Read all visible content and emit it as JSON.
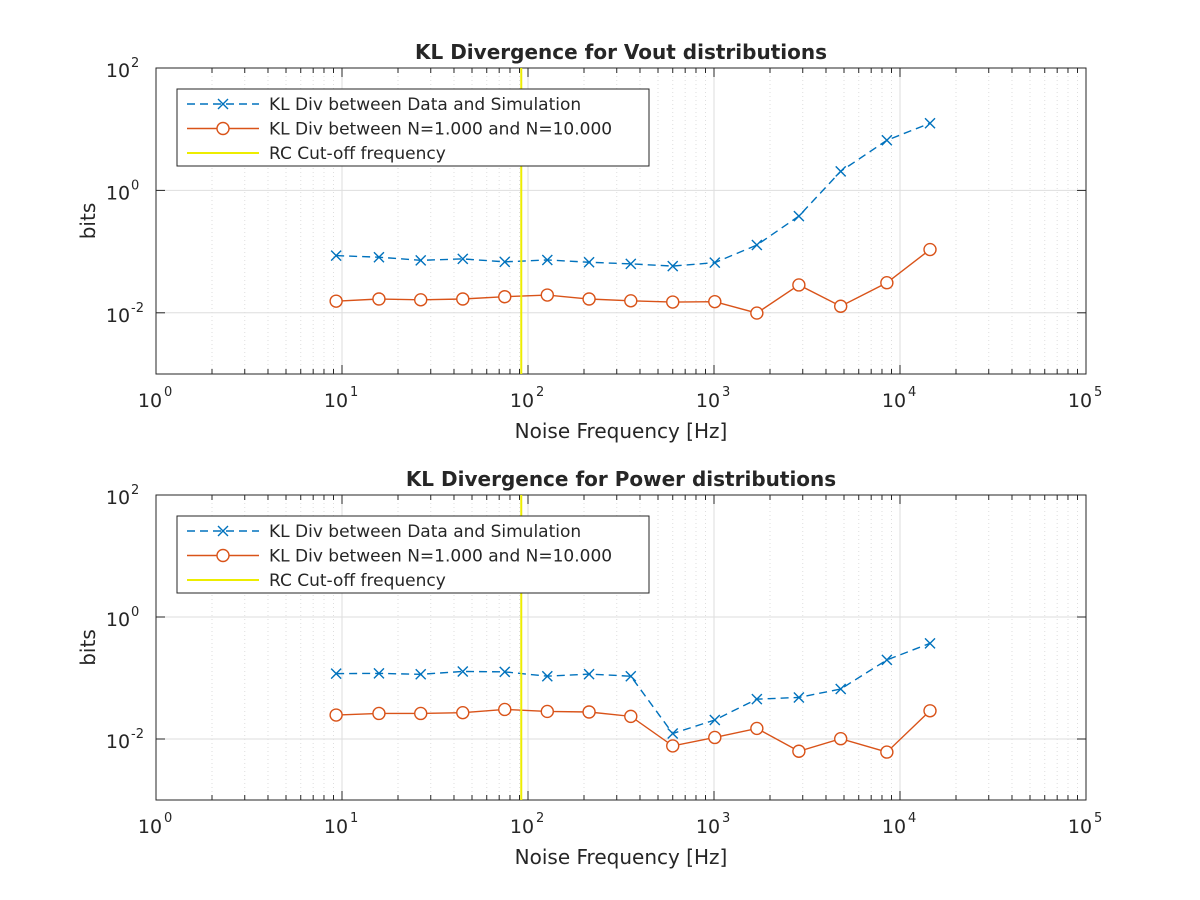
{
  "colors": {
    "series1": "#0072BD",
    "series2": "#D95319",
    "cutoff": "#EDED00",
    "grid": "#dedede",
    "axis": "#262626"
  },
  "chart_data": [
    {
      "type": "line",
      "title": "KL Divergence for Vout distributions",
      "xlabel": "Noise Frequency [Hz]",
      "ylabel": "bits",
      "xscale": "log",
      "yscale": "log",
      "xlim": [
        1,
        100000
      ],
      "ylim": [
        0.001,
        100
      ],
      "xticks": [
        {
          "base": "10",
          "exp": "0"
        },
        {
          "base": "10",
          "exp": "1"
        },
        {
          "base": "10",
          "exp": "2"
        },
        {
          "base": "10",
          "exp": "3"
        },
        {
          "base": "10",
          "exp": "4"
        },
        {
          "base": "10",
          "exp": "5"
        }
      ],
      "yticks": [
        {
          "base": "10",
          "exp": "-2"
        },
        {
          "base": "10",
          "exp": "0"
        },
        {
          "base": "10",
          "exp": "2"
        }
      ],
      "grid": true,
      "legend_position": "top-left",
      "x": [
        9.3,
        15.8,
        26.5,
        44.6,
        75,
        127,
        213,
        357,
        600,
        1010,
        1700,
        2860,
        4800,
        8500,
        14500
      ],
      "series": [
        {
          "name": "KL Div between Data and Simulation",
          "style": "dashed-x",
          "values": [
            0.086,
            0.081,
            0.072,
            0.076,
            0.068,
            0.073,
            0.067,
            0.063,
            0.058,
            0.066,
            0.128,
            0.38,
            2.05,
            6.6,
            12.5
          ]
        },
        {
          "name": "KL Div between N=1.000 and N=10.000",
          "style": "solid-o",
          "values": [
            0.0155,
            0.0168,
            0.0163,
            0.0168,
            0.0183,
            0.0195,
            0.0168,
            0.0157,
            0.015,
            0.0152,
            0.0099,
            0.0285,
            0.0128,
            0.031,
            0.108
          ]
        },
        {
          "name": "RC Cut-off frequency",
          "style": "vline",
          "x": 92
        }
      ]
    },
    {
      "type": "line",
      "title": "KL Divergence for Power distributions",
      "xlabel": "Noise Frequency [Hz]",
      "ylabel": "bits",
      "xscale": "log",
      "yscale": "log",
      "xlim": [
        1,
        100000
      ],
      "ylim": [
        0.001,
        100
      ],
      "xticks": [
        {
          "base": "10",
          "exp": "0"
        },
        {
          "base": "10",
          "exp": "1"
        },
        {
          "base": "10",
          "exp": "2"
        },
        {
          "base": "10",
          "exp": "3"
        },
        {
          "base": "10",
          "exp": "4"
        },
        {
          "base": "10",
          "exp": "5"
        }
      ],
      "yticks": [
        {
          "base": "10",
          "exp": "-2"
        },
        {
          "base": "10",
          "exp": "0"
        },
        {
          "base": "10",
          "exp": "2"
        }
      ],
      "grid": true,
      "legend_position": "top-left",
      "x": [
        9.3,
        15.8,
        26.5,
        44.6,
        75,
        127,
        213,
        357,
        600,
        1010,
        1700,
        2860,
        4800,
        8500,
        14500
      ],
      "series": [
        {
          "name": "KL Div between Data and Simulation",
          "style": "dashed-x",
          "values": [
            0.118,
            0.119,
            0.115,
            0.128,
            0.126,
            0.107,
            0.116,
            0.107,
            0.0123,
            0.0205,
            0.045,
            0.048,
            0.066,
            0.198,
            0.37
          ]
        },
        {
          "name": "KL Div between N=1.000 and N=10.000",
          "style": "solid-o",
          "values": [
            0.0247,
            0.0262,
            0.0262,
            0.027,
            0.0305,
            0.0283,
            0.0277,
            0.0235,
            0.0077,
            0.0106,
            0.0149,
            0.0063,
            0.0101,
            0.0061,
            0.029
          ]
        },
        {
          "name": "RC Cut-off frequency",
          "style": "vline",
          "x": 92
        }
      ]
    }
  ]
}
